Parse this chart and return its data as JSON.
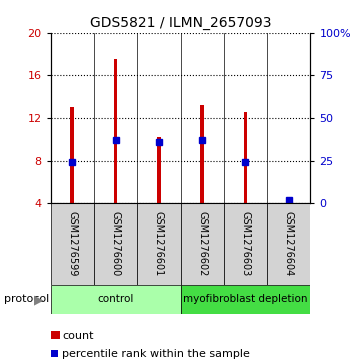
{
  "title": "GDS5821 / ILMN_2657093",
  "samples": [
    "GSM1276599",
    "GSM1276600",
    "GSM1276601",
    "GSM1276602",
    "GSM1276603",
    "GSM1276604"
  ],
  "counts": [
    13.0,
    17.5,
    10.2,
    13.2,
    12.6,
    4.3
  ],
  "percentiles": [
    24,
    37,
    36,
    37,
    24,
    2
  ],
  "ylim_left": [
    4,
    20
  ],
  "ylim_right": [
    0,
    100
  ],
  "yticks_left": [
    4,
    8,
    12,
    16,
    20
  ],
  "yticks_right": [
    0,
    25,
    50,
    75,
    100
  ],
  "ytick_labels_right": [
    "0",
    "25",
    "50",
    "75",
    "100%"
  ],
  "bar_color": "#CC0000",
  "percentile_color": "#0000CC",
  "bar_width": 0.08,
  "protocol_groups": [
    {
      "label": "control",
      "indices": [
        0,
        1,
        2
      ],
      "color": "#AAFFAA"
    },
    {
      "label": "myofibroblast depletion",
      "indices": [
        3,
        4,
        5
      ],
      "color": "#44DD44"
    }
  ],
  "legend_count_label": "count",
  "legend_pct_label": "percentile rank within the sample",
  "protocol_label": "protocol",
  "sample_box_color": "#D3D3D3",
  "title_fontsize": 10,
  "tick_fontsize": 8,
  "sample_label_fontsize": 7
}
